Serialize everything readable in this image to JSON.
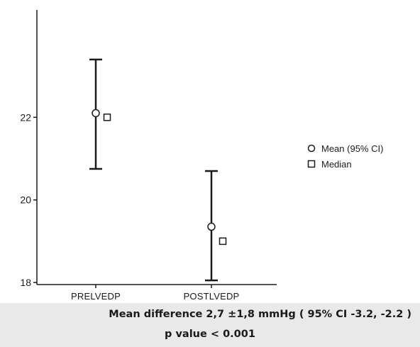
{
  "chart_data": {
    "type": "error-bar",
    "categories": [
      "PRELVEDP",
      "POSTLVEDP"
    ],
    "series": [
      {
        "name": "Mean (95% CI)",
        "marker": "circle",
        "values": [
          22.1,
          19.35
        ],
        "ci_low": [
          20.75,
          18.05
        ],
        "ci_high": [
          23.4,
          20.7
        ]
      },
      {
        "name": "Median",
        "marker": "square",
        "values": [
          22.0,
          19.0
        ]
      }
    ],
    "yticks": [
      18,
      20,
      22
    ],
    "ylim": [
      17.95,
      24.6
    ],
    "title": "",
    "xlabel": "",
    "ylabel": "",
    "grid": false,
    "legend_position": "right"
  },
  "caption": {
    "line1": "Mean difference 2,7 ±1,8 mmHg ( 95% CI -3.2, -2.2 )",
    "line2": "p value < 0.001"
  },
  "colors": {
    "ink": "#1a1a1a",
    "caption_background": "#e9e9e9"
  }
}
